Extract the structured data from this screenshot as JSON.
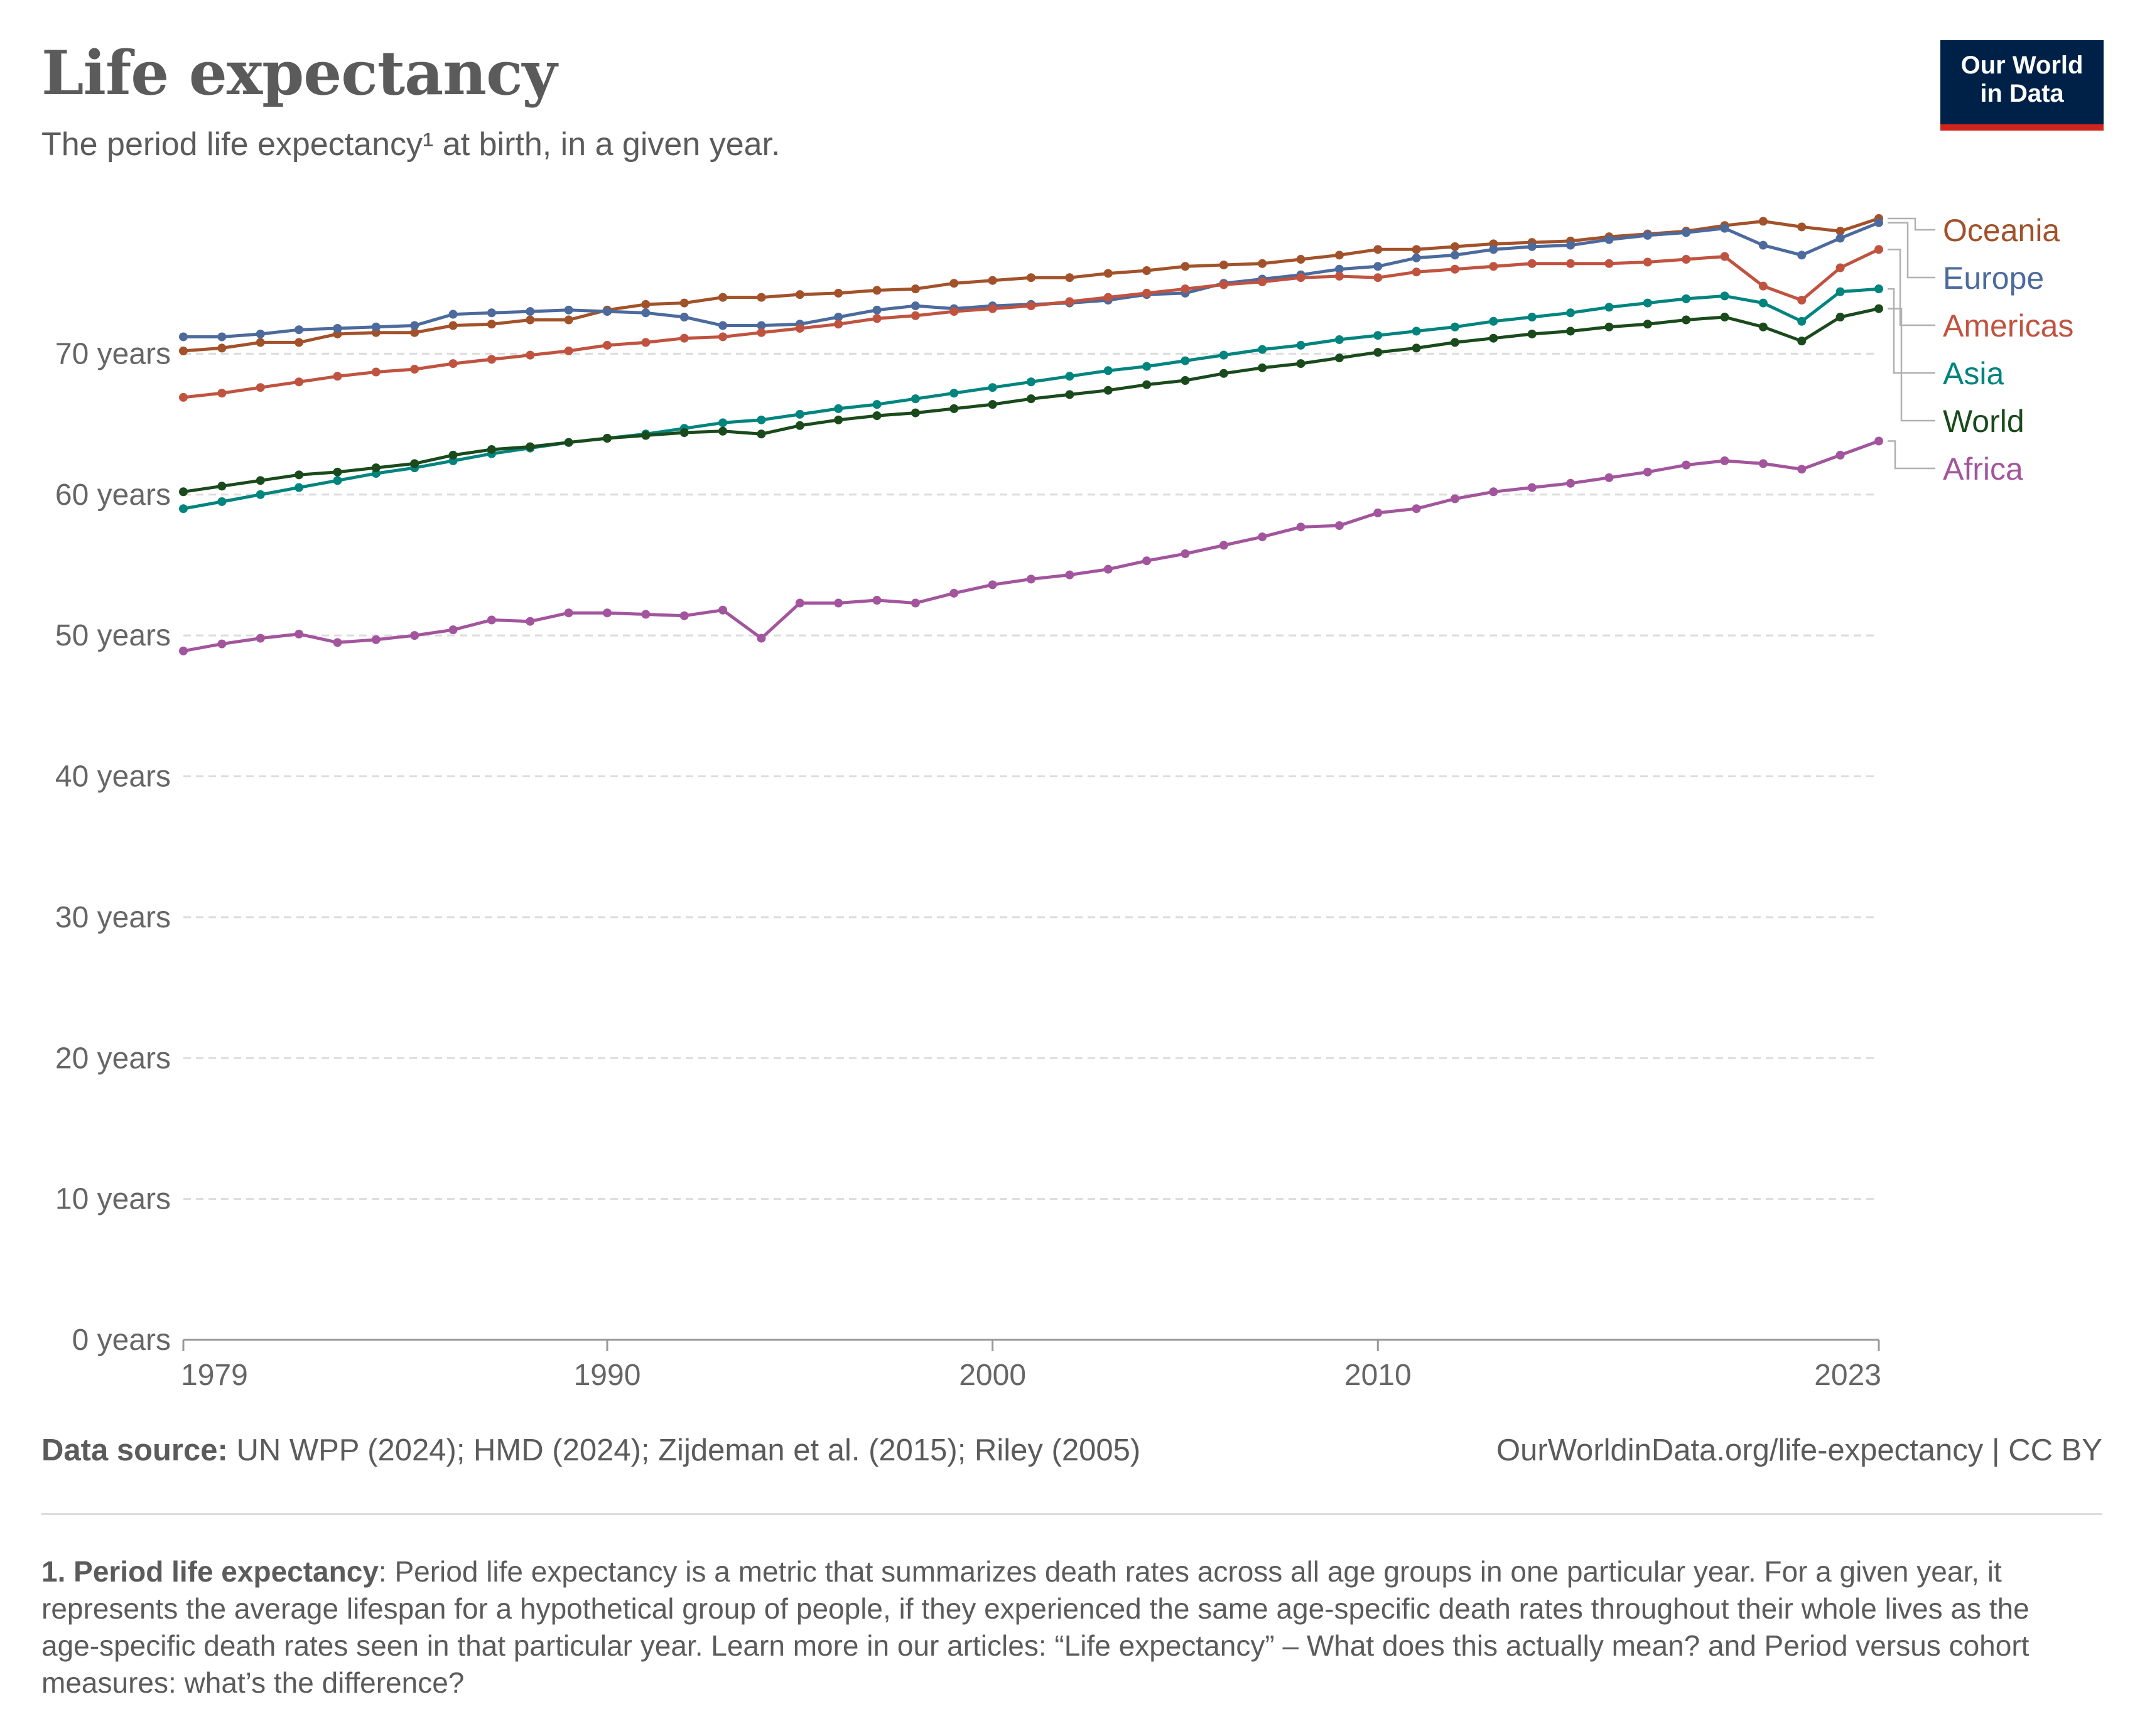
{
  "title": "Life expectancy",
  "subtitle": "The period life expectancy¹ at birth, in a given year.",
  "logo": {
    "line1": "Our World",
    "line2": "in Data"
  },
  "footer": {
    "source_label": "Data source:",
    "source_text": "UN WPP (2024); HMD (2024); Zijdeman et al. (2015); Riley (2005)",
    "url": "OurWorldinData.org/life-expectancy | CC BY"
  },
  "note": {
    "label": "1. Period life expectancy",
    "text": ": Period life expectancy is a metric that summarizes death rates across all age groups in one particular year. For a given year, it represents the average lifespan for a hypothetical group of people, if they experienced the same age-specific death rates throughout their whole lives as the age-specific death rates seen in that particular year. Learn more in our articles: “Life expectancy” – What does this actually mean? and Period versus cohort measures: what’s the difference?"
  },
  "chart_data": {
    "type": "line",
    "x": [
      1979,
      1980,
      1981,
      1982,
      1983,
      1984,
      1985,
      1986,
      1987,
      1988,
      1989,
      1990,
      1991,
      1992,
      1993,
      1994,
      1995,
      1996,
      1997,
      1998,
      1999,
      2000,
      2001,
      2002,
      2003,
      2004,
      2005,
      2006,
      2007,
      2008,
      2009,
      2010,
      2011,
      2012,
      2013,
      2014,
      2015,
      2016,
      2017,
      2018,
      2019,
      2020,
      2021,
      2022,
      2023
    ],
    "xticks": [
      1979,
      1990,
      2000,
      2010,
      2023
    ],
    "yticks": [
      0,
      10,
      20,
      30,
      40,
      50,
      60,
      70
    ],
    "ytick_labels": [
      "0 years",
      "10 years",
      "20 years",
      "30 years",
      "40 years",
      "50 years",
      "60 years",
      "70 years"
    ],
    "ylim": [
      0,
      80
    ],
    "xlim": [
      1979,
      2023
    ],
    "grid": "horizontal dashed",
    "legend_placement": "right, end-of-line labels",
    "series": [
      {
        "name": "Oceania",
        "color": "#a2522a",
        "values": [
          70.2,
          70.4,
          70.8,
          70.8,
          71.4,
          71.5,
          71.5,
          72.0,
          72.1,
          72.4,
          72.4,
          73.1,
          73.5,
          73.6,
          74.0,
          74.0,
          74.2,
          74.3,
          74.5,
          74.6,
          75.0,
          75.2,
          75.4,
          75.4,
          75.7,
          75.9,
          76.2,
          76.3,
          76.4,
          76.7,
          77.0,
          77.4,
          77.4,
          77.6,
          77.8,
          77.9,
          78.0,
          78.3,
          78.5,
          78.7,
          79.1,
          79.4,
          79.0,
          78.7,
          79.6
        ]
      },
      {
        "name": "Europe",
        "color": "#4c6a9c",
        "values": [
          71.2,
          71.2,
          71.4,
          71.7,
          71.8,
          71.9,
          72.0,
          72.8,
          72.9,
          73.0,
          73.1,
          73.0,
          72.9,
          72.6,
          72.0,
          72.0,
          72.1,
          72.6,
          73.1,
          73.4,
          73.2,
          73.4,
          73.5,
          73.6,
          73.8,
          74.2,
          74.3,
          75.0,
          75.3,
          75.6,
          76.0,
          76.2,
          76.8,
          77.0,
          77.4,
          77.6,
          77.7,
          78.1,
          78.4,
          78.6,
          78.9,
          77.7,
          77.0,
          78.2,
          79.3
        ]
      },
      {
        "name": "Americas",
        "color": "#c05340",
        "values": [
          66.9,
          67.2,
          67.6,
          68.0,
          68.4,
          68.7,
          68.9,
          69.3,
          69.6,
          69.9,
          70.2,
          70.6,
          70.8,
          71.1,
          71.2,
          71.5,
          71.8,
          72.1,
          72.5,
          72.7,
          73.0,
          73.2,
          73.4,
          73.7,
          74.0,
          74.3,
          74.6,
          74.9,
          75.1,
          75.4,
          75.5,
          75.4,
          75.8,
          76.0,
          76.2,
          76.4,
          76.4,
          76.4,
          76.5,
          76.7,
          76.9,
          74.8,
          73.8,
          76.1,
          77.4
        ]
      },
      {
        "name": "Asia",
        "color": "#00847e",
        "values": [
          59.0,
          59.5,
          60.0,
          60.5,
          61.0,
          61.5,
          61.9,
          62.4,
          62.9,
          63.3,
          63.7,
          64.0,
          64.3,
          64.7,
          65.1,
          65.3,
          65.7,
          66.1,
          66.4,
          66.8,
          67.2,
          67.6,
          68.0,
          68.4,
          68.8,
          69.1,
          69.5,
          69.9,
          70.3,
          70.6,
          71.0,
          71.3,
          71.6,
          71.9,
          72.3,
          72.6,
          72.9,
          73.3,
          73.6,
          73.9,
          74.1,
          73.6,
          72.3,
          74.4,
          74.6
        ]
      },
      {
        "name": "World",
        "color": "#1a4a1c",
        "values": [
          60.2,
          60.6,
          61.0,
          61.4,
          61.6,
          61.9,
          62.2,
          62.8,
          63.2,
          63.4,
          63.7,
          64.0,
          64.2,
          64.4,
          64.5,
          64.3,
          64.9,
          65.3,
          65.6,
          65.8,
          66.1,
          66.4,
          66.8,
          67.1,
          67.4,
          67.8,
          68.1,
          68.6,
          69.0,
          69.3,
          69.7,
          70.1,
          70.4,
          70.8,
          71.1,
          71.4,
          71.6,
          71.9,
          72.1,
          72.4,
          72.6,
          71.9,
          70.9,
          72.6,
          73.2
        ]
      },
      {
        "name": "Africa",
        "color": "#a2559c",
        "values": [
          48.9,
          49.4,
          49.8,
          50.1,
          49.5,
          49.7,
          50.0,
          50.4,
          51.1,
          51.0,
          51.6,
          51.6,
          51.5,
          51.4,
          51.8,
          49.8,
          52.3,
          52.3,
          52.5,
          52.3,
          53.0,
          53.6,
          54.0,
          54.3,
          54.7,
          55.3,
          55.8,
          56.4,
          57.0,
          57.7,
          57.8,
          58.7,
          59.0,
          59.7,
          60.2,
          60.5,
          60.8,
          61.2,
          61.6,
          62.1,
          62.4,
          62.2,
          61.8,
          62.8,
          63.8
        ]
      }
    ]
  }
}
